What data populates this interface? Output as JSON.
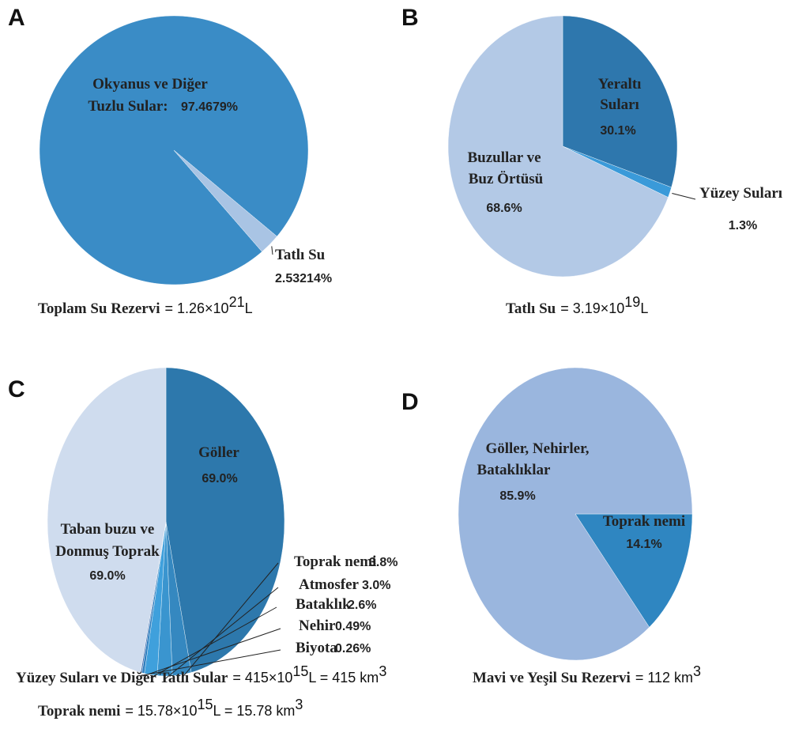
{
  "chart_data": [
    {
      "type": "pie",
      "panel": "A",
      "categories": [
        [
          "Okyanus ve Diğer",
          "Tuzlu Sular:"
        ],
        [
          "Tatlı Su"
        ]
      ],
      "values": [
        97.4679,
        2.53214
      ],
      "value_labels": [
        "97.4679%",
        "2.53214%"
      ],
      "colors": [
        "#3a8cc6",
        "#a9c4e4"
      ],
      "footer": [
        {
          "label": "Toplam Su Rezervi",
          "parts": [
            "= 1.26×10",
            "21",
            "L"
          ]
        }
      ]
    },
    {
      "type": "pie",
      "panel": "B",
      "categories": [
        [
          "Yeraltı",
          "Suları"
        ],
        [
          "Yüzey Suları"
        ],
        [
          "Buzullar ve",
          "Buz Örtüsü"
        ]
      ],
      "values": [
        30.1,
        1.3,
        68.6
      ],
      "value_labels": [
        "30.1%",
        "1.3%",
        "68.6%"
      ],
      "colors": [
        "#2e77ad",
        "#3a9ad9",
        "#b3c9e6"
      ],
      "footer": [
        {
          "label": "Tatlı Su",
          "parts": [
            "= 3.19×10",
            "19",
            "L"
          ]
        }
      ]
    },
    {
      "type": "pie",
      "panel": "C",
      "categories": [
        [
          "Göller"
        ],
        [
          "Toprak nemi"
        ],
        [
          "Atmosfer"
        ],
        [
          "Bataklık"
        ],
        [
          "Nehir"
        ],
        [
          "Biyota"
        ],
        [
          "Taban buzu ve",
          "Donmuş Toprak"
        ]
      ],
      "values": [
        69.0,
        3.8,
        3.0,
        2.6,
        0.49,
        0.26,
        69.0
      ],
      "value_labels": [
        "69.0%",
        "3.8%",
        "3.0%",
        "2.6%",
        "0.49%",
        "0.26%",
        "69.0%"
      ],
      "colors": [
        "#2d78ac",
        "#3588c0",
        "#3a95cf",
        "#3fa0dc",
        "#2f7fbf",
        "#3f6fb0",
        "#cfdcee"
      ],
      "footer": [
        {
          "label": "Yüzey Suları ve Diğer Tatlı Sular",
          "parts": [
            "= 415×10",
            "15",
            "L = 415 km",
            "3"
          ]
        },
        {
          "label": "Toprak nemi",
          "parts": [
            "= 15.78×10",
            "15",
            "L = 15.78 km",
            "3"
          ]
        }
      ]
    },
    {
      "type": "pie",
      "panel": "D",
      "categories": [
        [
          "Toprak nemi"
        ],
        [
          "Göller, Nehirler,",
          "Bataklıklar"
        ]
      ],
      "values": [
        14.1,
        85.9
      ],
      "value_labels": [
        "14.1%",
        "85.9%"
      ],
      "colors": [
        "#2f86c1",
        "#9ab6de"
      ],
      "footer": [
        {
          "label": "Mavi ve Yeşil Su Rezervi",
          "parts": [
            "= 112 km",
            "3"
          ]
        }
      ]
    }
  ]
}
